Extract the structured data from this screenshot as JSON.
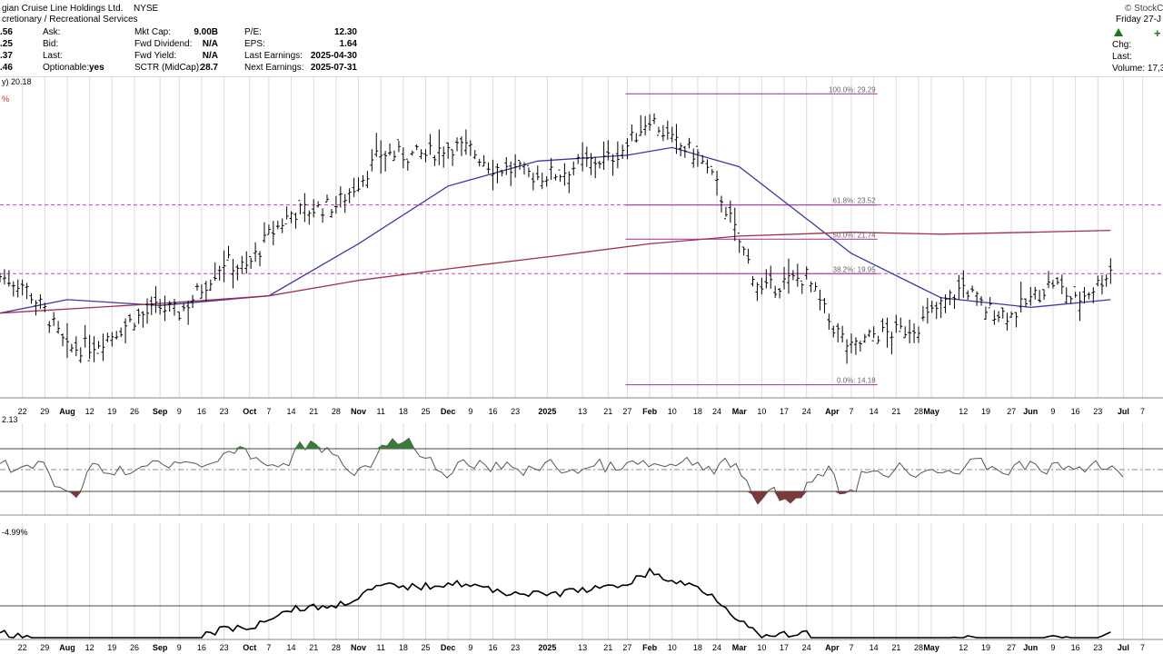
{
  "header": {
    "title": "gian Cruise Line Holdings Ltd.",
    "exchange": "NYSE",
    "sector": "cretionary / Recreational Services",
    "brand": "© StockC",
    "date": "Friday  27-J",
    "chg_label": "Chg:",
    "last_label": "Last:",
    "volume_label": "Volume: 17,3",
    "left_values": [
      ".56",
      ".25",
      ".37",
      ".46"
    ],
    "quote_labels": [
      "Ask:",
      "Bid:",
      "Last:",
      "Optionable:"
    ],
    "optionable": "yes",
    "col2_labels": [
      "Mkt Cap:",
      "Fwd Dividend:",
      "Fwd Yield:",
      "SCTR (MidCap):"
    ],
    "col2_values": [
      "9.00B",
      "N/A",
      "N/A",
      "28.7"
    ],
    "col3_labels": [
      "P/E:",
      "EPS:",
      "Last Earnings:",
      "Next Earnings:"
    ],
    "col3_values": [
      "12.30",
      "1.64",
      "2025-04-30",
      "2025-07-31"
    ]
  },
  "price_panel": {
    "legend_text": "y) 20.18",
    "legend_pct": "%",
    "fib_levels": [
      {
        "label": "100.0%: 29.29",
        "price": 29.29
      },
      {
        "label": "61.8%: 23.52",
        "price": 23.52
      },
      {
        "label": "50.0%: 21.74",
        "price": 21.74
      },
      {
        "label": "38.2%: 19.95",
        "price": 19.95
      },
      {
        "label": "0.0%: 14.18",
        "price": 14.18
      }
    ],
    "dashed_levels": [
      23.52,
      19.95
    ]
  },
  "indicator1": {
    "legend_text": "2.13"
  },
  "indicator2": {
    "legend_text": "-4.99%"
  },
  "x_axis_labels": [
    "22",
    "29",
    "Aug",
    "12",
    "19",
    "26",
    "Sep",
    "9",
    "16",
    "23",
    "Oct",
    "7",
    "14",
    "21",
    "28",
    "Nov",
    "11",
    "18",
    "25",
    "Dec",
    "9",
    "16",
    "23",
    "2025",
    "13",
    "21",
    "27",
    "Feb",
    "10",
    "18",
    "24",
    "Mar",
    "10",
    "17",
    "24",
    "Apr",
    "7",
    "14",
    "21",
    "28",
    "May",
    "12",
    "19",
    "27",
    "Jun",
    "9",
    "16",
    "23",
    "Jul",
    "7"
  ],
  "colors": {
    "price_bar": "#000000",
    "ma50": "#3a3aa0",
    "ma200": "#a0304a",
    "fib": "#b040b0",
    "dashed": "#c040c0",
    "grid": "#dcdcdc",
    "positive_fill": "#3a7a3a",
    "negative_fill": "#7a3a3a"
  },
  "chart_data": {
    "type": "line",
    "title": "gian Cruise Line Holdings Ltd. NYSE",
    "ylim": [
      13.5,
      30.2
    ],
    "price_series": {
      "name": "price",
      "x": [
        "2024-07-15",
        "2024-07-22",
        "2024-07-29",
        "2024-08-05",
        "2024-08-12",
        "2024-08-19",
        "2024-08-26",
        "2024-09-03",
        "2024-09-09",
        "2024-09-16",
        "2024-09-23",
        "2024-09-30",
        "2024-10-07",
        "2024-10-14",
        "2024-10-21",
        "2024-10-28",
        "2024-11-04",
        "2024-11-11",
        "2024-11-18",
        "2024-11-25",
        "2024-12-02",
        "2024-12-09",
        "2024-12-16",
        "2024-12-23",
        "2024-12-30",
        "2025-01-06",
        "2025-01-13",
        "2025-01-21",
        "2025-01-27",
        "2025-02-03",
        "2025-02-10",
        "2025-02-18",
        "2025-02-24",
        "2025-03-03",
        "2025-03-10",
        "2025-03-17",
        "2025-03-24",
        "2025-03-31",
        "2025-04-07",
        "2025-04-14",
        "2025-04-21",
        "2025-04-28",
        "2025-05-05",
        "2025-05-12",
        "2025-05-19",
        "2025-05-27",
        "2025-06-02",
        "2025-06-09",
        "2025-06-16",
        "2025-06-23",
        "2025-06-27"
      ],
      "values": [
        19.8,
        19.4,
        18.0,
        16.0,
        16.2,
        16.8,
        17.6,
        18.2,
        17.9,
        19.2,
        20.6,
        20.2,
        21.9,
        23.1,
        23.3,
        23.5,
        24.7,
        26.2,
        26.1,
        26.1,
        26.6,
        26.4,
        25.5,
        25.3,
        25.0,
        25.2,
        25.7,
        25.9,
        26.6,
        28.1,
        26.8,
        26.1,
        24.5,
        21.6,
        19.0,
        19.5,
        19.8,
        17.5,
        16.0,
        16.8,
        16.9,
        17.3,
        18.3,
        19.3,
        18.1,
        17.8,
        18.6,
        19.5,
        18.5,
        19.4,
        20.18
      ]
    },
    "series": [
      {
        "name": "50-day MA",
        "x": [
          "2024-07-15",
          "2024-08-05",
          "2024-09-03",
          "2024-10-07",
          "2024-11-04",
          "2024-12-02",
          "2024-12-30",
          "2025-01-27",
          "2025-02-10",
          "2025-03-03",
          "2025-04-07",
          "2025-05-05",
          "2025-06-02",
          "2025-06-27"
        ],
        "values": [
          17.9,
          18.6,
          18.3,
          18.8,
          21.5,
          24.5,
          25.8,
          26.1,
          26.5,
          25.5,
          21.0,
          18.7,
          18.2,
          18.6
        ]
      },
      {
        "name": "200-day MA",
        "x": [
          "2024-07-15",
          "2024-09-03",
          "2024-10-07",
          "2024-11-04",
          "2024-12-02",
          "2025-01-06",
          "2025-02-03",
          "2025-03-03",
          "2025-04-07",
          "2025-05-05",
          "2025-06-02",
          "2025-06-27"
        ],
        "values": [
          17.9,
          18.4,
          18.8,
          19.6,
          20.2,
          20.9,
          21.5,
          21.9,
          22.1,
          22.0,
          22.1,
          22.2
        ]
      }
    ]
  }
}
